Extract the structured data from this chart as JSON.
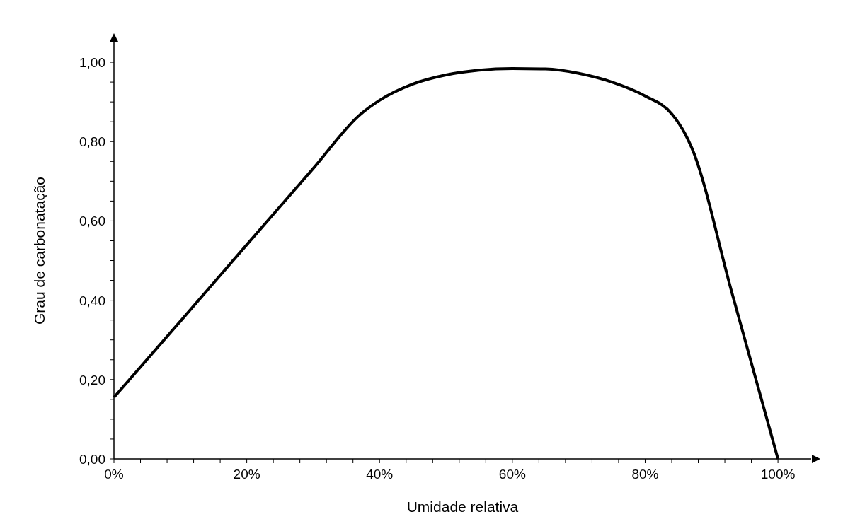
{
  "chart_data": {
    "type": "line",
    "xlabel": "Umidade relativa",
    "ylabel": "Grau de carbonatação",
    "x": [
      0,
      10,
      20,
      30,
      37,
      40,
      45,
      50,
      55,
      60,
      65,
      70,
      75,
      80,
      84,
      86,
      87,
      93,
      100
    ],
    "series": [
      {
        "color": "#000000",
        "values": [
          0.155,
          0.347,
          0.54,
          0.732,
          0.867,
          0.904,
          0.945,
          0.968,
          0.98,
          0.984,
          0.983,
          0.972,
          0.95,
          0.915,
          0.87,
          0.82,
          0.785,
          0.423,
          0
        ]
      }
    ],
    "xlim": [
      0,
      105
    ],
    "ylim": [
      0,
      1.05
    ],
    "xticks": [
      {
        "value": 0,
        "label": "0%"
      },
      {
        "value": 4,
        "label": null
      },
      {
        "value": 8,
        "label": null
      },
      {
        "value": 12,
        "label": null
      },
      {
        "value": 16,
        "label": null
      },
      {
        "value": 20,
        "label": "20%"
      },
      {
        "value": 24,
        "label": null
      },
      {
        "value": 28,
        "label": null
      },
      {
        "value": 32,
        "label": null
      },
      {
        "value": 36,
        "label": null
      },
      {
        "value": 40,
        "label": "40%"
      },
      {
        "value": 44,
        "label": null
      },
      {
        "value": 48,
        "label": null
      },
      {
        "value": 52,
        "label": null
      },
      {
        "value": 56,
        "label": null
      },
      {
        "value": 60,
        "label": "60%"
      },
      {
        "value": 64,
        "label": null
      },
      {
        "value": 68,
        "label": null
      },
      {
        "value": 72,
        "label": null
      },
      {
        "value": 76,
        "label": null
      },
      {
        "value": 80,
        "label": "80%"
      },
      {
        "value": 84,
        "label": null
      },
      {
        "value": 88,
        "label": null
      },
      {
        "value": 92,
        "label": null
      },
      {
        "value": 96,
        "label": null
      },
      {
        "value": 100,
        "label": "100%"
      }
    ],
    "yticks": [
      {
        "value": 0,
        "label": "0,00"
      },
      {
        "value": 0.05,
        "label": null
      },
      {
        "value": 0.1,
        "label": null
      },
      {
        "value": 0.15,
        "label": null
      },
      {
        "value": 0.2,
        "label": "0,20"
      },
      {
        "value": 0.25,
        "label": null
      },
      {
        "value": 0.3,
        "label": null
      },
      {
        "value": 0.35,
        "label": null
      },
      {
        "value": 0.4,
        "label": "0,40"
      },
      {
        "value": 0.45,
        "label": null
      },
      {
        "value": 0.5,
        "label": null
      },
      {
        "value": 0.55,
        "label": null
      },
      {
        "value": 0.6,
        "label": "0,60"
      },
      {
        "value": 0.65,
        "label": null
      },
      {
        "value": 0.7,
        "label": null
      },
      {
        "value": 0.75,
        "label": null
      },
      {
        "value": 0.8,
        "label": "0,80"
      },
      {
        "value": 0.85,
        "label": null
      },
      {
        "value": 0.9,
        "label": null
      },
      {
        "value": 0.95,
        "label": null
      },
      {
        "value": 1,
        "label": "1,00"
      }
    ],
    "grid": false,
    "marker": "none",
    "line_style": "solid"
  }
}
